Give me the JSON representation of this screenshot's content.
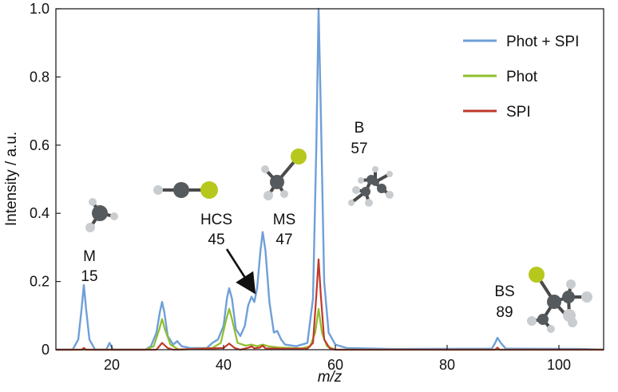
{
  "chart_data": {
    "type": "line",
    "title": "",
    "xlabel_italic": "m/z",
    "ylabel": "Intensity / a.u.",
    "xlim": [
      10,
      108
    ],
    "ylim": [
      0,
      1.0
    ],
    "x_ticks": [
      20,
      40,
      60,
      80,
      100
    ],
    "y_ticks": [
      0,
      0.2,
      0.4,
      0.6,
      0.8,
      1.0
    ],
    "x_tick_labels": [
      "20",
      "40",
      "60",
      "80",
      "100"
    ],
    "y_tick_labels": [
      "0",
      "0.2",
      "0.4",
      "0.6",
      "0.8",
      "1.0"
    ],
    "grid": false,
    "legend_position": "top-right",
    "series": [
      {
        "name": "Phot + SPI",
        "color": "#6f9fd8",
        "points": [
          [
            10,
            0
          ],
          [
            13,
            0
          ],
          [
            14,
            0.03
          ],
          [
            14.6,
            0.12
          ],
          [
            15,
            0.19
          ],
          [
            15.4,
            0.12
          ],
          [
            16,
            0.03
          ],
          [
            17,
            0
          ],
          [
            19,
            0
          ],
          [
            19.6,
            0.02
          ],
          [
            20.2,
            0
          ],
          [
            26,
            0
          ],
          [
            27,
            0.01
          ],
          [
            28,
            0.05
          ],
          [
            28.6,
            0.11
          ],
          [
            29,
            0.14
          ],
          [
            29.4,
            0.11
          ],
          [
            30,
            0.04
          ],
          [
            31,
            0.015
          ],
          [
            31.7,
            0.025
          ],
          [
            32.5,
            0.01
          ],
          [
            34,
            0.005
          ],
          [
            37,
            0.005
          ],
          [
            38,
            0.02
          ],
          [
            39,
            0.03
          ],
          [
            40,
            0.07
          ],
          [
            40.6,
            0.15
          ],
          [
            41,
            0.18
          ],
          [
            41.5,
            0.15
          ],
          [
            42.2,
            0.06
          ],
          [
            43,
            0.04
          ],
          [
            43.8,
            0.07
          ],
          [
            44.4,
            0.13
          ],
          [
            45,
            0.155
          ],
          [
            45.5,
            0.14
          ],
          [
            46,
            0.18
          ],
          [
            46.6,
            0.29
          ],
          [
            47,
            0.345
          ],
          [
            47.5,
            0.29
          ],
          [
            48.2,
            0.14
          ],
          [
            49,
            0.05
          ],
          [
            49.6,
            0.055
          ],
          [
            50.3,
            0.03
          ],
          [
            51,
            0.015
          ],
          [
            53,
            0.01
          ],
          [
            55,
            0.02
          ],
          [
            56,
            0.15
          ],
          [
            56.6,
            0.6
          ],
          [
            57,
            1.0
          ],
          [
            57.4,
            0.7
          ],
          [
            58,
            0.2
          ],
          [
            58.8,
            0.05
          ],
          [
            60,
            0.015
          ],
          [
            62,
            0.005
          ],
          [
            70,
            0.002
          ],
          [
            88,
            0.003
          ],
          [
            88.6,
            0.02
          ],
          [
            89,
            0.035
          ],
          [
            89.6,
            0.02
          ],
          [
            90.5,
            0.003
          ],
          [
            104,
            0.002
          ],
          [
            108,
            0
          ]
        ]
      },
      {
        "name": "Phot",
        "color": "#8fbf2a",
        "points": [
          [
            10,
            0
          ],
          [
            26,
            0
          ],
          [
            27.5,
            0.01
          ],
          [
            28.5,
            0.06
          ],
          [
            29,
            0.09
          ],
          [
            29.5,
            0.06
          ],
          [
            30.5,
            0.015
          ],
          [
            32,
            0
          ],
          [
            38,
            0.005
          ],
          [
            39.5,
            0.02
          ],
          [
            40.5,
            0.09
          ],
          [
            41,
            0.12
          ],
          [
            41.5,
            0.09
          ],
          [
            42.5,
            0.02
          ],
          [
            44,
            0.012
          ],
          [
            45,
            0.015
          ],
          [
            46,
            0.01
          ],
          [
            47,
            0.015
          ],
          [
            48,
            0.01
          ],
          [
            50,
            0.006
          ],
          [
            54,
            0.004
          ],
          [
            55.5,
            0.01
          ],
          [
            56.4,
            0.05
          ],
          [
            57,
            0.12
          ],
          [
            57.6,
            0.05
          ],
          [
            58.5,
            0.01
          ],
          [
            60,
            0
          ],
          [
            108,
            0
          ]
        ]
      },
      {
        "name": "SPI",
        "color": "#c0392b",
        "points": [
          [
            10,
            0
          ],
          [
            14.6,
            0
          ],
          [
            15,
            0.005
          ],
          [
            15.4,
            0
          ],
          [
            28,
            0
          ],
          [
            29,
            0.02
          ],
          [
            30,
            0.005
          ],
          [
            31,
            0
          ],
          [
            40,
            0.005
          ],
          [
            41,
            0.018
          ],
          [
            42,
            0.005
          ],
          [
            43,
            0
          ],
          [
            44.5,
            0.006
          ],
          [
            45,
            0.01
          ],
          [
            45.5,
            0.004
          ],
          [
            46.5,
            0.006
          ],
          [
            47,
            0.012
          ],
          [
            47.5,
            0.004
          ],
          [
            50,
            0.003
          ],
          [
            55,
            0.003
          ],
          [
            56,
            0.02
          ],
          [
            56.6,
            0.16
          ],
          [
            57,
            0.265
          ],
          [
            57.4,
            0.16
          ],
          [
            58,
            0.03
          ],
          [
            59,
            0.004
          ],
          [
            60,
            0
          ],
          [
            88.6,
            0
          ],
          [
            89,
            0.006
          ],
          [
            89.4,
            0
          ],
          [
            108,
            0
          ]
        ]
      }
    ],
    "annotations": [
      {
        "label": "M",
        "value": "15"
      },
      {
        "label": "HCS",
        "value": "45"
      },
      {
        "label": "MS",
        "value": "47"
      },
      {
        "label": "B",
        "value": "57"
      },
      {
        "label": "BS",
        "value": "89"
      }
    ]
  }
}
